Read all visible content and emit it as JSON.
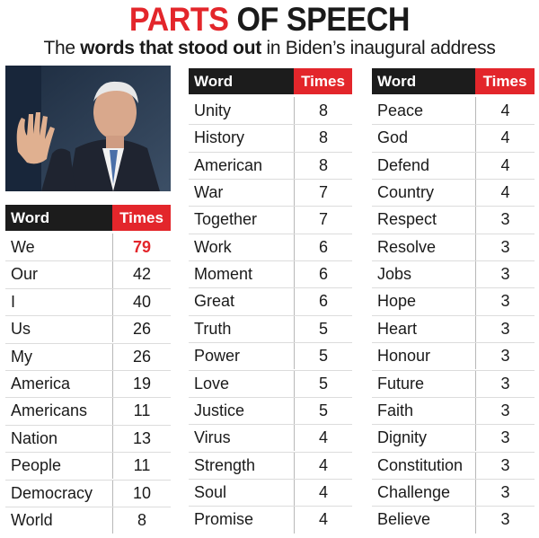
{
  "header": {
    "title_part1": "PARTS",
    "title_part2": "OF SPEECH",
    "subtitle_pre": "The ",
    "subtitle_bold": "words that stood out",
    "subtitle_post": " in Biden’s inaugural address"
  },
  "colors": {
    "accent": "#e3262b",
    "header_dark": "#1c1c1c"
  },
  "chart_data": [
    {
      "type": "table",
      "columns": [
        "Word",
        "Times"
      ],
      "rows": [
        {
          "word": "We",
          "times": "79"
        },
        {
          "word": "Our",
          "times": "42"
        },
        {
          "word": "I",
          "times": "40"
        },
        {
          "word": "Us",
          "times": "26"
        },
        {
          "word": "My",
          "times": "26"
        },
        {
          "word": "America",
          "times": "19"
        },
        {
          "word": "Americans",
          "times": "11"
        },
        {
          "word": "Nation",
          "times": "13"
        },
        {
          "word": "People",
          "times": "11"
        },
        {
          "word": "Democracy",
          "times": "10"
        },
        {
          "word": "World",
          "times": "8"
        }
      ]
    },
    {
      "type": "table",
      "columns": [
        "Word",
        "Times"
      ],
      "rows": [
        {
          "word": "Unity",
          "times": "8"
        },
        {
          "word": "History",
          "times": "8"
        },
        {
          "word": "American",
          "times": "8"
        },
        {
          "word": "War",
          "times": "7"
        },
        {
          "word": "Together",
          "times": "7"
        },
        {
          "word": "Work",
          "times": "6"
        },
        {
          "word": "Moment",
          "times": "6"
        },
        {
          "word": "Great",
          "times": "6"
        },
        {
          "word": "Truth",
          "times": "5"
        },
        {
          "word": "Power",
          "times": "5"
        },
        {
          "word": "Love",
          "times": "5"
        },
        {
          "word": "Justice",
          "times": "5"
        },
        {
          "word": "Virus",
          "times": "4"
        },
        {
          "word": "Strength",
          "times": "4"
        },
        {
          "word": "Soul",
          "times": "4"
        },
        {
          "word": "Promise",
          "times": "4"
        }
      ]
    },
    {
      "type": "table",
      "columns": [
        "Word",
        "Times"
      ],
      "rows": [
        {
          "word": "Peace",
          "times": "4"
        },
        {
          "word": "God",
          "times": "4"
        },
        {
          "word": "Defend",
          "times": "4"
        },
        {
          "word": "Country",
          "times": "4"
        },
        {
          "word": "Respect",
          "times": "3"
        },
        {
          "word": "Resolve",
          "times": "3"
        },
        {
          "word": "Jobs",
          "times": "3"
        },
        {
          "word": "Hope",
          "times": "3"
        },
        {
          "word": "Heart",
          "times": "3"
        },
        {
          "word": "Honour",
          "times": "3"
        },
        {
          "word": "Future",
          "times": "3"
        },
        {
          "word": "Faith",
          "times": "3"
        },
        {
          "word": "Dignity",
          "times": "3"
        },
        {
          "word": "Constitution",
          "times": "3"
        },
        {
          "word": "Challenge",
          "times": "3"
        },
        {
          "word": "Believe",
          "times": "3"
        }
      ]
    }
  ]
}
